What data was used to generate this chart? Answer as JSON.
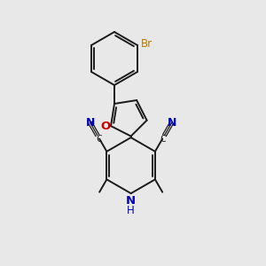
{
  "background_color": "#e8e8e8",
  "bond_color": "#1a1a1a",
  "blue": "#0000bb",
  "red": "#cc0000",
  "brown": "#bb7700",
  "figsize": [
    3.0,
    3.0
  ],
  "dpi": 100,
  "xlim": [
    0,
    10
  ],
  "ylim": [
    0,
    10
  ]
}
